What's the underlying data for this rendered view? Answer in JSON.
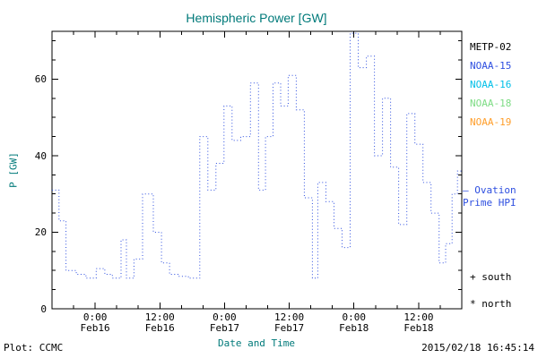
{
  "title": "Hemispheric Power [GW]",
  "colors": {
    "background": "#ffffff",
    "axis": "#000000",
    "label_text": "#007a7a",
    "tick_text": "#000000",
    "line": "#2e4fe0",
    "ovation_text": "#2e4fe0"
  },
  "axes": {
    "ylabel": "P [GW]",
    "xlabel": "Date and Time",
    "y_ticks": [
      "0",
      "20",
      "40",
      "60"
    ],
    "x_ticks": [
      {
        "time": "0:00",
        "date": "Feb16"
      },
      {
        "time": "12:00",
        "date": "Feb16"
      },
      {
        "time": "0:00",
        "date": "Feb17"
      },
      {
        "time": "12:00",
        "date": "Feb17"
      },
      {
        "time": "0:00",
        "date": "Feb18"
      },
      {
        "time": "12:00",
        "date": "Feb18"
      }
    ]
  },
  "legend": {
    "satellites": [
      {
        "label": "METP-02",
        "color": "#000000"
      },
      {
        "label": "NOAA-15",
        "color": "#2e4fe0"
      },
      {
        "label": "NOAA-16",
        "color": "#00bfe8"
      },
      {
        "label": "NOAA-18",
        "color": "#7ddc84"
      },
      {
        "label": "NOAA-19",
        "color": "#ff9e2a"
      }
    ],
    "ovation_line1": "— Ovation",
    "ovation_line2": "Prime HPI",
    "south_label": "+ south",
    "north_label": "* north"
  },
  "footer": {
    "credit": "Plot: CCMC",
    "timestamp": "2015/02/18 16:45:14"
  },
  "chart_data": {
    "type": "line",
    "style": "step plot, dotted blue line",
    "series_name": "Ovation Prime HPI",
    "title": "Hemispheric Power [GW]",
    "xlabel": "Date and Time",
    "ylabel": "P [GW]",
    "ylim": [
      0,
      72.5
    ],
    "x_unit": "hours; 0 = left axis edge (8 h before Feb16 00:00), axis spans ~76 h ending ~20:00 Feb18",
    "x_hours": [
      0,
      1.3,
      2.6,
      4.5,
      6.3,
      8.2,
      9.8,
      11.2,
      12.8,
      13.8,
      15.2,
      16.8,
      18.8,
      20.3,
      21.8,
      23.5,
      25.3,
      27.4,
      28.9,
      30.4,
      31.9,
      33.4,
      35.0,
      36.8,
      38.3,
      39.6,
      41.0,
      42.4,
      43.8,
      45.3,
      46.8,
      48.3,
      49.3,
      50.8,
      52.3,
      53.8,
      55.3,
      56.8,
      58.3,
      59.8,
      61.3,
      62.8,
      64.3,
      65.8,
      67.3,
      68.8,
      70.3,
      71.8,
      73.0,
      74.2,
      75.2
    ],
    "values_gw": [
      31,
      23,
      10,
      9,
      8,
      10.5,
      9,
      8,
      18,
      8,
      13,
      30,
      20,
      12,
      9,
      8.5,
      8,
      45,
      31,
      38,
      53,
      44,
      45,
      59,
      31,
      45,
      59,
      53,
      61,
      52,
      29,
      8,
      33,
      28,
      21,
      16,
      72,
      63,
      66,
      40,
      55,
      37,
      22,
      51,
      43,
      33,
      25,
      12,
      17,
      30,
      36
    ],
    "layout": {
      "xlim_hours": [
        0,
        76
      ],
      "x_major_hours": [
        8,
        20,
        32,
        44,
        56,
        68
      ],
      "x_minor_step_hours": 4,
      "y_major": [
        0,
        20,
        40,
        60
      ],
      "y_minor_step": 5,
      "grid": false,
      "legend_position": "right"
    }
  }
}
